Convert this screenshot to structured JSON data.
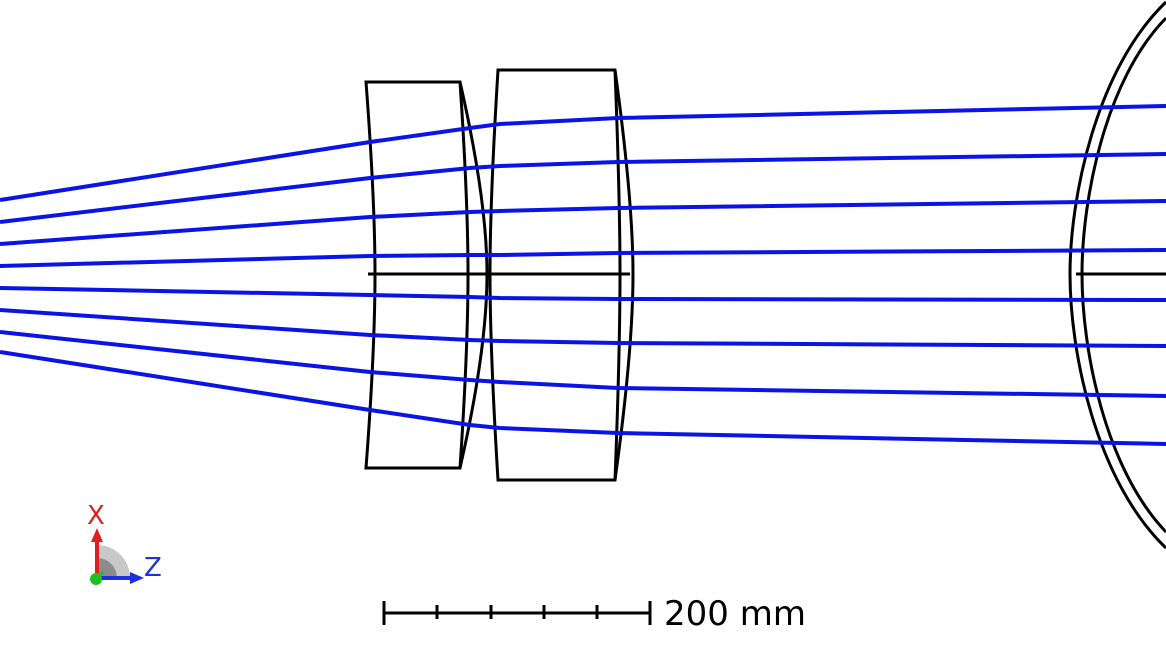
{
  "scale_bar": {
    "label": "200 mm",
    "length_mm": 200
  },
  "axis_triad": {
    "x_label": "X",
    "z_label": "Z",
    "x_color": "#e02020",
    "z_color": "#2030e0",
    "origin_color": "#20c020"
  },
  "colors": {
    "ray": "#0a14e6",
    "element": "#000000"
  },
  "rays": {
    "count": 8
  },
  "elements": [
    {
      "name": "lens-1"
    },
    {
      "name": "lens-2"
    },
    {
      "name": "curved-mirror"
    }
  ]
}
